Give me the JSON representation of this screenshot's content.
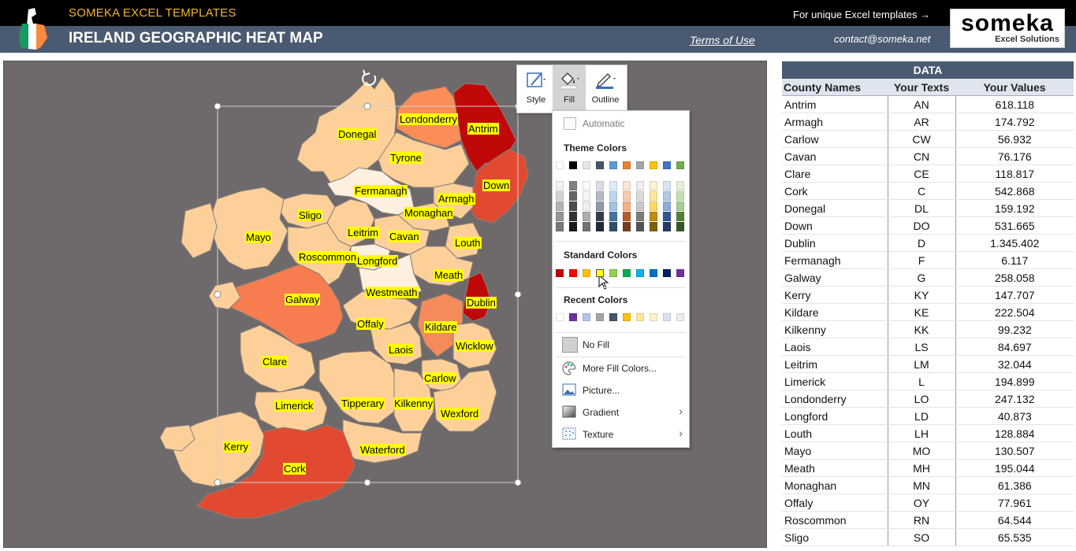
{
  "header": {
    "brand": "SOMEKA EXCEL TEMPLATES",
    "title": "IRELAND GEOGRAPHIC HEAT MAP",
    "terms": "Terms of Use",
    "unique": "For unique Excel templates →",
    "contact": "contact@someka.net",
    "logo_word": "someka",
    "logo_sub": "Excel Solutions"
  },
  "ribbon": {
    "style": "Style",
    "fill": "Fill",
    "outline": "Outline"
  },
  "fill_menu": {
    "automatic": "Automatic",
    "theme_colors": "Theme Colors",
    "standard_colors": "Standard Colors",
    "recent_colors": "Recent Colors",
    "no_fill": "No Fill",
    "more_colors": "More Fill Colors...",
    "picture": "Picture...",
    "gradient": "Gradient",
    "texture": "Texture",
    "theme_top": [
      "#ffffff",
      "#000000",
      "#e7e6e6",
      "#44546a",
      "#5b9bd5",
      "#ed7d31",
      "#a5a5a5",
      "#ffc000",
      "#4472c4",
      "#70ad47"
    ],
    "standard": [
      "#c00000",
      "#ff0000",
      "#ffc000",
      "#ffff00",
      "#92d050",
      "#00b050",
      "#00b0f0",
      "#0070c0",
      "#002060",
      "#7030a0"
    ],
    "recent": [
      "#ffffff",
      "#7030a0",
      "#b4c7e7",
      "#a5a5a5",
      "#44546a",
      "#ffc000",
      "#ffe699",
      "#fff2cc",
      "#d9e1f2",
      "#ededed"
    ]
  },
  "map": {
    "labels": {
      "donegal": "Donegal",
      "londonderry": "Londonderry",
      "antrim": "Antrim",
      "tyrone": "Tyrone",
      "fermanagh": "Fermanagh",
      "armagh": "Armagh",
      "down": "Down",
      "monaghan": "Monaghan",
      "sligo": "Sligo",
      "leitrim": "Leitrim",
      "cavan": "Cavan",
      "mayo": "Mayo",
      "roscommon": "Roscommon",
      "longford": "Longford",
      "louth": "Louth",
      "meath": "Meath",
      "westmeath": "Westmeath",
      "dublin": "Dublin",
      "galway": "Galway",
      "offaly": "Offaly",
      "kildare": "Kildare",
      "wicklow": "Wicklow",
      "laois": "Laois",
      "clare": "Clare",
      "carlow": "Carlow",
      "limerick": "Limerick",
      "tipperary": "Tipperary",
      "kilkenny": "Kilkenny",
      "wexford": "Wexford",
      "kerry": "Kerry",
      "waterford": "Waterford",
      "cork": "Cork"
    }
  },
  "data_table": {
    "title": "DATA",
    "columns": [
      "County Names",
      "Your Texts",
      "Your Values"
    ],
    "rows": [
      [
        "Antrim",
        "AN",
        "618.118"
      ],
      [
        "Armagh",
        "AR",
        "174.792"
      ],
      [
        "Carlow",
        "CW",
        "56.932"
      ],
      [
        "Cavan",
        "CN",
        "76.176"
      ],
      [
        "Clare",
        "CE",
        "118.817"
      ],
      [
        "Cork",
        "C",
        "542.868"
      ],
      [
        "Donegal",
        "DL",
        "159.192"
      ],
      [
        "Down",
        "DO",
        "531.665"
      ],
      [
        "Dublin",
        "D",
        "1.345.402"
      ],
      [
        "Fermanagh",
        "F",
        "6.117"
      ],
      [
        "Galway",
        "G",
        "258.058"
      ],
      [
        "Kerry",
        "KY",
        "147.707"
      ],
      [
        "Kildare",
        "KE",
        "222.504"
      ],
      [
        "Kilkenny",
        "KK",
        "99.232"
      ],
      [
        "Laois",
        "LS",
        "84.697"
      ],
      [
        "Leitrim",
        "LM",
        "32.044"
      ],
      [
        "Limerick",
        "L",
        "194.899"
      ],
      [
        "Londonderry",
        "LO",
        "247.132"
      ],
      [
        "Longford",
        "LD",
        "40.873"
      ],
      [
        "Louth",
        "LH",
        "128.884"
      ],
      [
        "Mayo",
        "MO",
        "130.507"
      ],
      [
        "Meath",
        "MH",
        "195.044"
      ],
      [
        "Monaghan",
        "MN",
        "61.386"
      ],
      [
        "Offaly",
        "OY",
        "77.961"
      ],
      [
        "Roscommon",
        "RN",
        "64.544"
      ],
      [
        "Sligo",
        "SO",
        "65.535"
      ]
    ]
  }
}
